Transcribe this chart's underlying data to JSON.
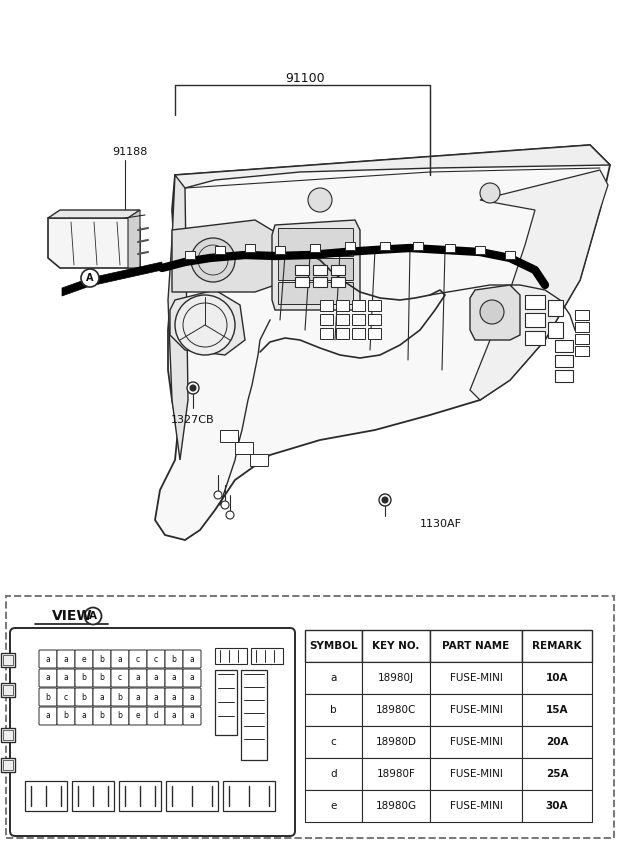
{
  "bg_color": "#ffffff",
  "line_color": "#2a2a2a",
  "text_color": "#111111",
  "title_label": "91100",
  "label_91188": "91188",
  "label_1327CB": "1327CB",
  "label_1130AF": "1130AF",
  "table_headers": [
    "SYMBOL",
    "KEY NO.",
    "PART NAME",
    "REMARK"
  ],
  "table_rows": [
    [
      "a",
      "18980J",
      "FUSE-MINI",
      "10A"
    ],
    [
      "b",
      "18980C",
      "FUSE-MINI",
      "15A"
    ],
    [
      "c",
      "18980D",
      "FUSE-MINI",
      "20A"
    ],
    [
      "d",
      "18980F",
      "FUSE-MINI",
      "25A"
    ],
    [
      "e",
      "18980G",
      "FUSE-MINI",
      "30A"
    ]
  ],
  "fuse_rows": [
    [
      "a",
      "a",
      "e",
      "b",
      "a",
      "c",
      "c",
      "b",
      "a"
    ],
    [
      "a",
      "a",
      "b",
      "b",
      "c",
      "a",
      "a",
      "a",
      "a"
    ],
    [
      "b",
      "c",
      "b",
      "a",
      "b",
      "a",
      "a",
      "a",
      "a"
    ],
    [
      "a",
      "b",
      "a",
      "b",
      "b",
      "e",
      "d",
      "a",
      "a"
    ]
  ],
  "dashed_border_color": "#888888"
}
